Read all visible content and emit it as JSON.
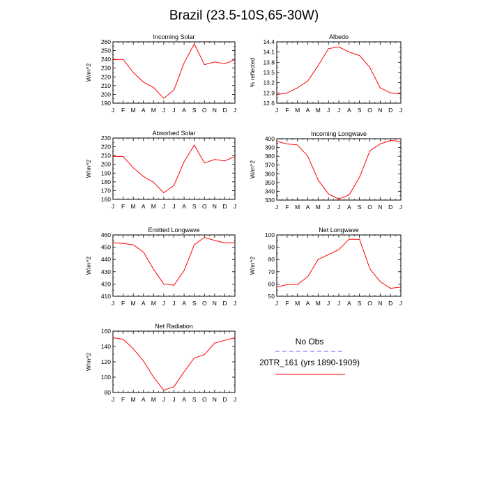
{
  "title": "Brazil (23.5-10S,65-30W)",
  "colors": {
    "model_line": "#ff0000",
    "obs_line": "#6666ff",
    "axis": "#000000"
  },
  "legend": {
    "entries": [
      {
        "label": "No Obs",
        "color": "#6666ff",
        "style": "dashed"
      },
      {
        "label": "20TR_161 (yrs 1890-1909)",
        "color": "#ff0000",
        "style": "solid"
      }
    ]
  },
  "chart_data": [
    {
      "type": "line",
      "title": "Incoming Solar",
      "ylabel": "W/m^2",
      "x": [
        "J",
        "F",
        "M",
        "A",
        "M",
        "J",
        "J",
        "A",
        "S",
        "O",
        "N",
        "D",
        "J"
      ],
      "ylim": [
        190,
        260
      ],
      "yticks": [
        190,
        200,
        210,
        220,
        230,
        240,
        250,
        260
      ],
      "series": [
        {
          "values": [
            239.5,
            240,
            225,
            214,
            208,
            195.5,
            205,
            236,
            257.5,
            234,
            237,
            235,
            239.5
          ]
        }
      ]
    },
    {
      "type": "line",
      "title": "Albedo",
      "ylabel": "% reflected",
      "x": [
        "J",
        "F",
        "M",
        "A",
        "M",
        "J",
        "J",
        "A",
        "S",
        "O",
        "N",
        "D",
        "J"
      ],
      "ylim": [
        12.6,
        14.4
      ],
      "yticks": [
        "12.6",
        "12.9",
        "13.2",
        "13.5",
        "13.8",
        "14.1",
        "14.4"
      ],
      "series": [
        {
          "values": [
            12.85,
            12.9,
            13.05,
            13.25,
            13.7,
            14.2,
            14.25,
            14.1,
            14,
            13.65,
            13.05,
            12.9,
            12.87
          ]
        }
      ]
    },
    {
      "type": "line",
      "title": "Absorbed Solar",
      "ylabel": "W/m^2",
      "x": [
        "J",
        "F",
        "M",
        "A",
        "M",
        "J",
        "J",
        "A",
        "S",
        "O",
        "N",
        "D",
        "J"
      ],
      "ylim": [
        160,
        230
      ],
      "yticks": [
        160,
        170,
        180,
        190,
        200,
        210,
        220,
        230
      ],
      "series": [
        {
          "values": [
            209,
            209,
            196,
            186,
            179.5,
            167.5,
            176,
            203,
            222,
            201.5,
            205.5,
            204,
            209
          ]
        }
      ]
    },
    {
      "type": "line",
      "title": "Incoming Longwave",
      "ylabel": "W/m^2",
      "x": [
        "J",
        "F",
        "M",
        "A",
        "M",
        "J",
        "J",
        "A",
        "S",
        "O",
        "N",
        "D",
        "J"
      ],
      "ylim": [
        330,
        400
      ],
      "yticks": [
        330,
        340,
        350,
        360,
        370,
        380,
        390,
        400
      ],
      "series": [
        {
          "values": [
            397,
            394,
            393,
            380,
            353,
            337,
            331,
            336,
            356,
            386,
            394,
            398,
            397
          ]
        }
      ]
    },
    {
      "type": "line",
      "title": "Emitted Longwave",
      "ylabel": "W/m^2",
      "x": [
        "J",
        "F",
        "M",
        "A",
        "M",
        "J",
        "J",
        "A",
        "S",
        "O",
        "N",
        "D",
        "J"
      ],
      "ylim": [
        410,
        460
      ],
      "yticks": [
        410,
        420,
        430,
        440,
        450,
        460
      ],
      "series": [
        {
          "values": [
            453.5,
            453,
            452,
            446,
            432,
            420,
            419,
            431,
            452,
            458,
            455.5,
            453.5,
            453.5
          ]
        }
      ]
    },
    {
      "type": "line",
      "title": "Net Longwave",
      "ylabel": "W/m^2",
      "x": [
        "J",
        "F",
        "M",
        "A",
        "M",
        "J",
        "J",
        "A",
        "S",
        "O",
        "N",
        "D",
        "J"
      ],
      "ylim": [
        50,
        100
      ],
      "yticks": [
        50,
        60,
        70,
        80,
        90,
        100
      ],
      "series": [
        {
          "values": [
            57.5,
            59.5,
            59.5,
            66,
            80,
            84,
            88,
            96.5,
            96.5,
            72.5,
            62,
            56.5,
            57.5
          ]
        }
      ]
    },
    {
      "type": "line",
      "title": "Net Radiation",
      "ylabel": "W/m^2",
      "x": [
        "J",
        "F",
        "M",
        "A",
        "M",
        "J",
        "J",
        "A",
        "S",
        "O",
        "N",
        "D",
        "J"
      ],
      "ylim": [
        80,
        160
      ],
      "yticks": [
        80,
        100,
        120,
        140,
        160
      ],
      "series": [
        {
          "values": [
            151.5,
            149.5,
            137,
            121,
            100,
            83,
            87.5,
            107,
            125,
            129.5,
            144.5,
            148,
            151.5
          ]
        }
      ]
    }
  ]
}
